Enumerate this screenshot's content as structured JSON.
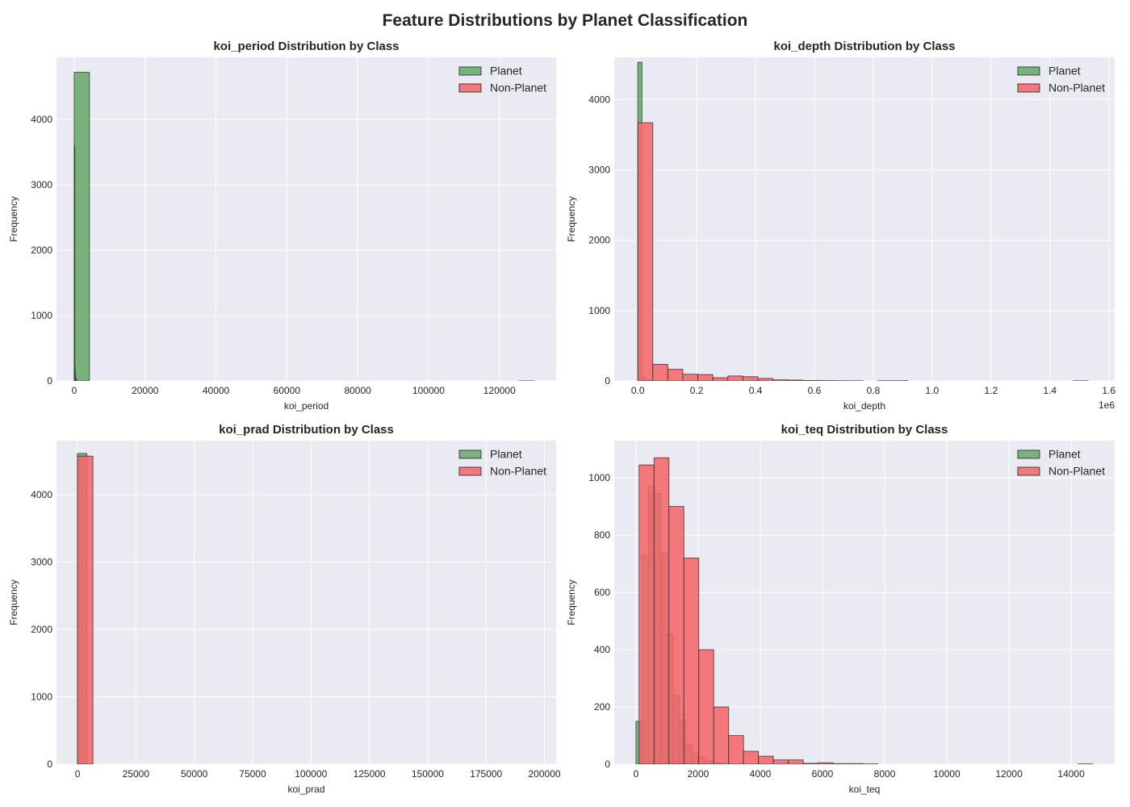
{
  "figure": {
    "title": "Feature Distributions by Planet Classification"
  },
  "colors": {
    "background": "#EAEAF2",
    "grid": "#FFFFFF",
    "planet": "#67AB6A",
    "non_planet": "#F5676B",
    "overlap": "#BD6040",
    "edge": "#333333",
    "text": "#262626"
  },
  "chart_data": [
    {
      "type": "histogram",
      "title": "koi_period Distribution by Class",
      "xlabel": "koi_period",
      "ylabel": "Frequency",
      "xlim": [
        -5000,
        136000
      ],
      "ylim": [
        0,
        4950
      ],
      "xticks": [
        0,
        20000,
        40000,
        60000,
        80000,
        100000,
        120000
      ],
      "xtick_labels": [
        "0",
        "20000",
        "40000",
        "60000",
        "80000",
        "100000",
        "120000"
      ],
      "yticks": [
        0,
        1000,
        2000,
        3000,
        4000
      ],
      "ytick_labels": [
        "0",
        "1000",
        "2000",
        "3000",
        "4000"
      ],
      "offset_text": "",
      "legend_position": "upper right",
      "series": [
        {
          "name": "Planet",
          "color_key": "planet",
          "bins": [
            {
              "x0": 0,
              "x1": 4300,
              "count": 4720
            }
          ]
        },
        {
          "name": "Non-Planet",
          "color_key": "non_planet",
          "bins": [
            {
              "x0": 0,
              "x1": 80,
              "count": 3600
            },
            {
              "x0": 80,
              "x1": 200,
              "count": 220
            },
            {
              "x0": 200,
              "x1": 400,
              "count": 120
            },
            {
              "x0": 400,
              "x1": 700,
              "count": 30
            },
            {
              "x0": 125500,
              "x1": 129800,
              "count": 1
            }
          ]
        }
      ]
    },
    {
      "type": "histogram",
      "title": "koi_depth Distribution by Class",
      "xlabel": "koi_depth",
      "ylabel": "Frequency",
      "xlim": [
        -80000,
        1620000
      ],
      "ylim": [
        0,
        4600
      ],
      "xticks": [
        0,
        200000,
        400000,
        600000,
        800000,
        1000000,
        1200000,
        1400000,
        1600000
      ],
      "xtick_labels": [
        "0.0",
        "0.2",
        "0.4",
        "0.6",
        "0.8",
        "1.0",
        "1.2",
        "1.4",
        "1.6"
      ],
      "yticks": [
        0,
        1000,
        2000,
        3000,
        4000
      ],
      "ytick_labels": [
        "0",
        "1000",
        "2000",
        "3000",
        "4000"
      ],
      "offset_text": "1e6",
      "legend_position": "upper right",
      "series": [
        {
          "name": "Planet",
          "color_key": "planet",
          "bins": [
            {
              "x0": 0,
              "x1": 14000,
              "count": 4530
            },
            {
              "x0": 14000,
              "x1": 28000,
              "count": 55
            },
            {
              "x0": 28000,
              "x1": 42000,
              "count": 15
            }
          ]
        },
        {
          "name": "Non-Planet",
          "color_key": "non_planet",
          "bins": [
            {
              "x0": 0,
              "x1": 51000,
              "count": 3670
            },
            {
              "x0": 51000,
              "x1": 102000,
              "count": 235
            },
            {
              "x0": 102000,
              "x1": 153000,
              "count": 165
            },
            {
              "x0": 153000,
              "x1": 204000,
              "count": 95
            },
            {
              "x0": 204000,
              "x1": 255000,
              "count": 90
            },
            {
              "x0": 255000,
              "x1": 306000,
              "count": 45
            },
            {
              "x0": 306000,
              "x1": 357000,
              "count": 70
            },
            {
              "x0": 357000,
              "x1": 408000,
              "count": 60
            },
            {
              "x0": 408000,
              "x1": 459000,
              "count": 35
            },
            {
              "x0": 459000,
              "x1": 510000,
              "count": 15
            },
            {
              "x0": 510000,
              "x1": 561000,
              "count": 12
            },
            {
              "x0": 561000,
              "x1": 612000,
              "count": 6
            },
            {
              "x0": 612000,
              "x1": 663000,
              "count": 5
            },
            {
              "x0": 663000,
              "x1": 714000,
              "count": 3
            },
            {
              "x0": 714000,
              "x1": 765000,
              "count": 2
            },
            {
              "x0": 816000,
              "x1": 867000,
              "count": 3
            },
            {
              "x0": 867000,
              "x1": 918000,
              "count": 3
            },
            {
              "x0": 1479000,
              "x1": 1530000,
              "count": 2
            }
          ]
        }
      ]
    },
    {
      "type": "histogram",
      "title": "koi_prad Distribution by Class",
      "xlabel": "koi_prad",
      "ylabel": "Frequency",
      "xlim": [
        -9000,
        205000
      ],
      "ylim": [
        0,
        4800
      ],
      "xticks": [
        0,
        25000,
        50000,
        75000,
        100000,
        125000,
        150000,
        175000,
        200000
      ],
      "xtick_labels": [
        "0",
        "25000",
        "50000",
        "75000",
        "100000",
        "125000",
        "150000",
        "175000",
        "200000"
      ],
      "yticks": [
        0,
        1000,
        2000,
        3000,
        4000
      ],
      "ytick_labels": [
        "0",
        "1000",
        "2000",
        "3000",
        "4000"
      ],
      "offset_text": "",
      "legend_position": "upper right",
      "series": [
        {
          "name": "Planet",
          "color_key": "planet",
          "bins": [
            {
              "x0": 0,
              "x1": 4000,
              "count": 4610
            }
          ]
        },
        {
          "name": "Non-Planet",
          "color_key": "non_planet",
          "bins": [
            {
              "x0": 0,
              "x1": 6600,
              "count": 4570
            }
          ]
        }
      ]
    },
    {
      "type": "histogram",
      "title": "koi_teq Distribution by Class",
      "xlabel": "koi_teq",
      "ylabel": "Frequency",
      "xlim": [
        -700,
        15400
      ],
      "ylim": [
        0,
        1130
      ],
      "xticks": [
        0,
        2000,
        4000,
        6000,
        8000,
        10000,
        12000,
        14000
      ],
      "xtick_labels": [
        "0",
        "2000",
        "4000",
        "6000",
        "8000",
        "10000",
        "12000",
        "14000"
      ],
      "yticks": [
        0,
        200,
        400,
        600,
        800,
        1000
      ],
      "ytick_labels": [
        "0",
        "200",
        "400",
        "600",
        "800",
        "1000"
      ],
      "offset_text": "",
      "legend_position": "upper right",
      "series": [
        {
          "name": "Planet",
          "color_key": "planet",
          "bins": [
            {
              "x0": 0,
              "x1": 200,
              "count": 150
            },
            {
              "x0": 200,
              "x1": 400,
              "count": 730
            },
            {
              "x0": 400,
              "x1": 600,
              "count": 970
            },
            {
              "x0": 600,
              "x1": 800,
              "count": 945
            },
            {
              "x0": 800,
              "x1": 1000,
              "count": 740
            },
            {
              "x0": 1000,
              "x1": 1200,
              "count": 455
            },
            {
              "x0": 1200,
              "x1": 1400,
              "count": 240
            },
            {
              "x0": 1400,
              "x1": 1600,
              "count": 155
            },
            {
              "x0": 1600,
              "x1": 1800,
              "count": 70
            },
            {
              "x0": 1800,
              "x1": 2000,
              "count": 40
            },
            {
              "x0": 2000,
              "x1": 2200,
              "count": 25
            },
            {
              "x0": 2200,
              "x1": 2400,
              "count": 12
            },
            {
              "x0": 2400,
              "x1": 2600,
              "count": 8
            },
            {
              "x0": 2600,
              "x1": 2800,
              "count": 4
            }
          ]
        },
        {
          "name": "Non-Planet",
          "color_key": "non_planet",
          "bins": [
            {
              "x0": 100,
              "x1": 580,
              "count": 1045
            },
            {
              "x0": 580,
              "x1": 1060,
              "count": 1070
            },
            {
              "x0": 1060,
              "x1": 1540,
              "count": 900
            },
            {
              "x0": 1540,
              "x1": 2020,
              "count": 720
            },
            {
              "x0": 2020,
              "x1": 2500,
              "count": 400
            },
            {
              "x0": 2500,
              "x1": 2980,
              "count": 200
            },
            {
              "x0": 2980,
              "x1": 3460,
              "count": 100
            },
            {
              "x0": 3460,
              "x1": 3940,
              "count": 45
            },
            {
              "x0": 3940,
              "x1": 4420,
              "count": 28
            },
            {
              "x0": 4420,
              "x1": 4900,
              "count": 15
            },
            {
              "x0": 4900,
              "x1": 5380,
              "count": 15
            },
            {
              "x0": 5380,
              "x1": 5860,
              "count": 3
            },
            {
              "x0": 5860,
              "x1": 6340,
              "count": 5
            },
            {
              "x0": 6340,
              "x1": 6820,
              "count": 2
            },
            {
              "x0": 6820,
              "x1": 7300,
              "count": 2
            },
            {
              "x0": 7300,
              "x1": 7780,
              "count": 1
            },
            {
              "x0": 14220,
              "x1": 14700,
              "count": 1
            }
          ]
        }
      ]
    }
  ]
}
